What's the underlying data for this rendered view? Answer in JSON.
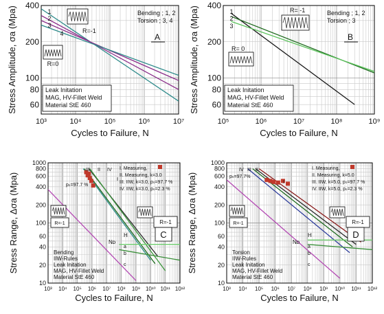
{
  "chart_data": [
    {
      "id": "A",
      "type": "line",
      "panel_label": "A",
      "xscale": "log",
      "yscale": "log",
      "xlim": [
        1000,
        10000000
      ],
      "ylim": [
        50,
        400
      ],
      "xlabel": "Cycles to Failure, N",
      "ylabel": "Stress Amplitude, σa (Mpa)",
      "x_ticks": [
        1000,
        10000,
        100000,
        1000000,
        10000000
      ],
      "x_tick_labels": [
        "10³",
        "10⁴",
        "10⁵",
        "10⁶",
        "10⁷"
      ],
      "y_ticks": [
        60,
        80,
        100,
        200,
        400
      ],
      "y_tick_labels": [
        "60",
        "80",
        "100",
        "200",
        "400"
      ],
      "legend_text": [
        "Bending ; 1, 2",
        "Torsion  ; 3, 4"
      ],
      "insets": [
        "R=-1",
        "R=0"
      ],
      "notes": [
        "Leak Initation",
        "MAG, HV-Fillet Weld",
        "Material StE 460"
      ],
      "series": [
        {
          "name": "1",
          "color": "#2e8b8b",
          "x": [
            1000,
            10000000
          ],
          "y": [
            375,
            64
          ]
        },
        {
          "name": "2",
          "color": "#8b2f8b",
          "x": [
            1000,
            10000000
          ],
          "y": [
            330,
            80
          ]
        },
        {
          "name": "3",
          "color": "#8b2f8b",
          "x": [
            1000,
            10000000
          ],
          "y": [
            300,
            95
          ]
        },
        {
          "name": "4",
          "color": "#2e8b8b",
          "x": [
            1000,
            10000000
          ],
          "y": [
            275,
            105
          ]
        }
      ]
    },
    {
      "id": "B",
      "type": "line",
      "panel_label": "B",
      "xscale": "log",
      "yscale": "log",
      "xlim": [
        100000,
        1000000000
      ],
      "ylim": [
        50,
        400
      ],
      "xlabel": "Cycles to Failure, N",
      "ylabel": "Stress Amplitude, σa (Mpa)",
      "x_ticks": [
        100000,
        1000000,
        10000000,
        100000000,
        1000000000
      ],
      "x_tick_labels": [
        "10⁵",
        "10⁶",
        "10⁷",
        "10⁸",
        "10⁹"
      ],
      "y_ticks": [
        60,
        80,
        100,
        200,
        400
      ],
      "y_tick_labels": [
        "60",
        "80",
        "100",
        "200",
        "400"
      ],
      "legend_text": [
        "Bending ; 1, 2",
        "Torsion  ; 3"
      ],
      "insets": [
        "R= -1",
        "R= 0"
      ],
      "notes": [
        "Leak Initation",
        "MAG, HV-Fillet Weld",
        "Material StE 460"
      ],
      "series": [
        {
          "name": "1",
          "color": "#1a1a1a",
          "x": [
            160000,
            300000000
          ],
          "y": [
            345,
            60
          ]
        },
        {
          "name": "2",
          "color": "#1f6b1f",
          "x": [
            160000,
            1000000000
          ],
          "y": [
            325,
            110
          ]
        },
        {
          "name": "3",
          "color": "#5cc35c",
          "x": [
            160000,
            1000000000
          ],
          "y": [
            295,
            113
          ]
        }
      ]
    },
    {
      "id": "C",
      "type": "line",
      "panel_label": "C",
      "xscale": "log",
      "yscale": "log",
      "xlim": [
        1000,
        1000000000000
      ],
      "ylim": [
        10,
        1000
      ],
      "xlabel": "Cycles to Failure, N",
      "ylabel": "Stress Range, Δσa (Mpa)",
      "x_ticks": [
        1000,
        10000,
        100000,
        1000000,
        10000000,
        100000000,
        1000000000,
        10000000000,
        100000000000,
        1000000000000
      ],
      "x_tick_labels": [
        "10³",
        "10⁴",
        "10⁵",
        "10⁶",
        "10⁷",
        "10⁸",
        "10⁹",
        "10¹⁰",
        "10¹¹",
        "10¹²"
      ],
      "y_ticks": [
        10,
        20,
        40,
        60,
        100,
        200,
        400,
        600,
        800,
        1000
      ],
      "y_tick_labels": [
        "10",
        "20",
        "40",
        "60",
        "100",
        "200",
        "400",
        "600",
        "800",
        "1000"
      ],
      "legend_text": [
        "I.  Measuring,",
        "II.  Measuring, k=3.0",
        "III. IIW, k=3.0, pₛ=97.7 %",
        "IV. IIW, k=3.0, pₛ=2.3 %"
      ],
      "region_labels": [
        "III",
        "II",
        "IV",
        "I",
        "pₛ=97.7 %",
        "R=-1",
        "Nᴅ",
        "H",
        "a",
        "b",
        "c"
      ],
      "notes": [
        "Bending",
        "IIW-Rules",
        "Leak Initation",
        "MAG, HV-Fillet Weld",
        "Material StE 460"
      ],
      "points": {
        "name": "I",
        "color": "#c0392b",
        "x": [
          400000,
          500000,
          600000,
          700000,
          900000,
          1200000
        ],
        "y": [
          700,
          620,
          660,
          560,
          500,
          420
        ]
      },
      "series": [
        {
          "name": "I",
          "color": "#2a2a2a",
          "x": [
            600000,
            30000000000
          ],
          "y": [
            800,
            28
          ]
        },
        {
          "name": "II",
          "color": "#1f6b1f",
          "x": [
            300000,
            20000000000
          ],
          "y": [
            800,
            21
          ]
        },
        {
          "name": "III",
          "color": "#2e8b8b",
          "x": [
            250000,
            10000000000
          ],
          "y": [
            800,
            24
          ]
        },
        {
          "name": "IV",
          "color": "#3f9a3f",
          "x": [
            700000,
            100000000000
          ],
          "y": [
            800,
            16
          ]
        },
        {
          "name": "a",
          "color": "#6fcf6f",
          "x": [
            70000000,
            1000000000000
          ],
          "y": [
            44,
            44
          ]
        },
        {
          "name": "b",
          "color": "#3a8f3a",
          "x": [
            70000000,
            1000000000000
          ],
          "y": [
            36,
            24
          ]
        },
        {
          "name": "c",
          "color": "#b44ab4",
          "x": [
            1000,
            1000000000
          ],
          "y": [
            360,
            11
          ]
        }
      ]
    },
    {
      "id": "D",
      "type": "line",
      "panel_label": "D",
      "xscale": "log",
      "yscale": "log",
      "xlim": [
        1000,
        1000000000000
      ],
      "ylim": [
        10,
        1000
      ],
      "xlabel": "Cycles to Failure, N",
      "ylabel": "Stress Range, Δσa (Mpa)",
      "x_ticks": [
        1000,
        10000,
        100000,
        1000000,
        10000000,
        100000000,
        1000000000,
        10000000000,
        100000000000,
        1000000000000
      ],
      "x_tick_labels": [
        "10³",
        "10⁴",
        "10⁵",
        "10⁶",
        "10⁷",
        "10⁸",
        "10⁹",
        "10¹⁰",
        "10¹¹",
        "10¹²"
      ],
      "y_ticks": [
        10,
        20,
        40,
        60,
        100,
        200,
        400,
        600,
        800,
        1000
      ],
      "y_tick_labels": [
        "10",
        "20",
        "40",
        "60",
        "100",
        "200",
        "400",
        "600",
        "800",
        "1000"
      ],
      "legend_text": [
        "I.   Measuring,",
        "II.  Measuring, k=5.0",
        "III. IIW, k=5.0, pₛ=97.7 %",
        "IV. IIW, k=5.0, pₛ=2.3 %"
      ],
      "region_labels": [
        "IV",
        "III",
        "II",
        "I",
        "pₛ=97.7%",
        "R=-1",
        "Nᴅ",
        "H",
        "a",
        "b",
        "c"
      ],
      "notes": [
        "Torsion",
        "IIW-Rules",
        "Leak Initation",
        "MAG, HV-Fillet Weld",
        "Material StE 460"
      ],
      "points": {
        "name": "I",
        "color": "#c0392b",
        "x": [
          300000,
          500000,
          800000,
          1500000,
          3000000,
          6000000
        ],
        "y": [
          520,
          500,
          480,
          470,
          500,
          450
        ]
      },
      "series": [
        {
          "name": "I",
          "color": "#8b1f1f",
          "x": [
            100000,
            200000000000
          ],
          "y": [
            800,
            48
          ]
        },
        {
          "name": "II",
          "color": "#2a2a2a",
          "x": [
            60000,
            100000000000
          ],
          "y": [
            800,
            44
          ]
        },
        {
          "name": "III",
          "color": "#1f6b1f",
          "x": [
            40000,
            60000000000
          ],
          "y": [
            800,
            40
          ]
        },
        {
          "name": "IV",
          "color": "#2a3a9a",
          "x": [
            20000,
            40000000000
          ],
          "y": [
            800,
            32
          ]
        },
        {
          "name": "a",
          "color": "#6fcf6f",
          "x": [
            100000000,
            1000000000000
          ],
          "y": [
            52,
            52
          ]
        },
        {
          "name": "b",
          "color": "#3a8f3a",
          "x": [
            100000000,
            1000000000000
          ],
          "y": [
            44,
            36
          ]
        },
        {
          "name": "c",
          "color": "#b44ab4",
          "x": [
            1000,
            10000000000
          ],
          "y": [
            520,
            12
          ]
        }
      ]
    }
  ]
}
